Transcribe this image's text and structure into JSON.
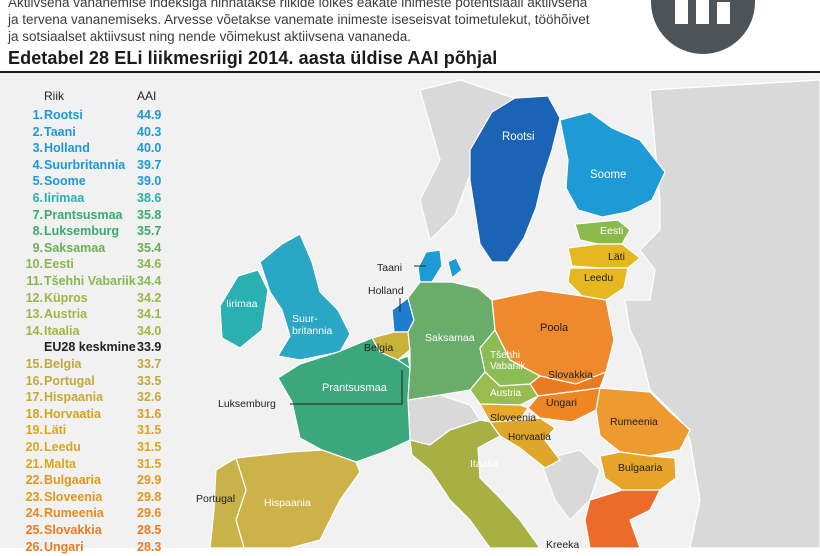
{
  "intro": {
    "line1": "Aktiivsena vananemise indeksiga hinnatakse riikide lõikes eakate inimeste potentsiaali aktiivsena",
    "line2": "ja tervena vananemiseks. Arvesse võetakse vanemate inimeste iseseisvat toimetulekut, tööhõivet",
    "line3": "ja sotsiaalset aktiivsust ning nende võimekust aktiivsena vananeda."
  },
  "title": "Edetabel 28 ELi liikmesriigi 2014. aasta üldise AAI põhjal",
  "legend": {
    "col_country": "Riik",
    "col_value": "AAI",
    "rows": [
      {
        "rank": "1.",
        "name": "Rootsi",
        "value": "44.9",
        "color": "#1a9bd7"
      },
      {
        "rank": "2.",
        "name": "Taani",
        "value": "40.3",
        "color": "#1a9bd7"
      },
      {
        "rank": "3.",
        "name": "Holland",
        "value": "40.0",
        "color": "#1a9bd7"
      },
      {
        "rank": "4.",
        "name": "Suurbritannia",
        "value": "39.7",
        "color": "#1a9bd7"
      },
      {
        "rank": "5.",
        "name": "Soome",
        "value": "39.0",
        "color": "#1a9bd7"
      },
      {
        "rank": "6.",
        "name": "Iirimaa",
        "value": "38.6",
        "color": "#2ab0b0"
      },
      {
        "rank": "7.",
        "name": "Prantsusmaa",
        "value": "35.8",
        "color": "#3aaa72"
      },
      {
        "rank": "8.",
        "name": "Luksemburg",
        "value": "35.7",
        "color": "#3aaa72"
      },
      {
        "rank": "9.",
        "name": "Saksamaa",
        "value": "35.4",
        "color": "#6ab055"
      },
      {
        "rank": "10.",
        "name": "Eesti",
        "value": "34.6",
        "color": "#86b84c"
      },
      {
        "rank": "11.",
        "name": "Tšehhi Vabariik",
        "value": "34.4",
        "color": "#86b84c"
      },
      {
        "rank": "12.",
        "name": "Küpros",
        "value": "34.2",
        "color": "#9ab845"
      },
      {
        "rank": "13.",
        "name": "Austria",
        "value": "34.1",
        "color": "#9ab845"
      },
      {
        "rank": "14.",
        "name": "Itaalia",
        "value": "34.0",
        "color": "#a6b43e"
      },
      {
        "rank": "",
        "name": "EU28 keskmine",
        "value": "33.9",
        "color": "#222222"
      },
      {
        "rank": "15.",
        "name": "Belgia",
        "value": "33.7",
        "color": "#c2a93a"
      },
      {
        "rank": "16.",
        "name": "Portugal",
        "value": "33.5",
        "color": "#c2a93a"
      },
      {
        "rank": "17.",
        "name": "Hispaania",
        "value": "32.6",
        "color": "#c8a836"
      },
      {
        "rank": "18.",
        "name": "Horvaatia",
        "value": "31.6",
        "color": "#d6a21e"
      },
      {
        "rank": "19.",
        "name": "Läti",
        "value": "31.5",
        "color": "#dea51a"
      },
      {
        "rank": "20.",
        "name": "Leedu",
        "value": "31.5",
        "color": "#dea51a"
      },
      {
        "rank": "21.",
        "name": "Malta",
        "value": "31.5",
        "color": "#dea51a"
      },
      {
        "rank": "22.",
        "name": "Bulgaaria",
        "value": "29.9",
        "color": "#e3961c"
      },
      {
        "rank": "23.",
        "name": "Sloveenia",
        "value": "29.8",
        "color": "#e3961c"
      },
      {
        "rank": "24.",
        "name": "Rumeenia",
        "value": "29.6",
        "color": "#e88a20"
      },
      {
        "rank": "25.",
        "name": "Slovakkia",
        "value": "28.5",
        "color": "#ec7a20"
      },
      {
        "rank": "26.",
        "name": "Ungari",
        "value": "28.3",
        "color": "#ec7a20"
      }
    ]
  },
  "map": {
    "land_color": "#d8d8d8",
    "sea_color": "#f0f0f0",
    "countries": {
      "rootsi": {
        "label": "Rootsi",
        "color": "#1a63b5",
        "label_color": "#ffffff"
      },
      "soome": {
        "label": "Soome",
        "color": "#1e9bd7",
        "label_color": "#ffffff"
      },
      "eesti": {
        "label": "Eesti",
        "color": "#8bba4c",
        "label_color": "#ffffff"
      },
      "lati": {
        "label": "Läti",
        "color": "#e6b820",
        "label_color": "#222222"
      },
      "leedu": {
        "label": "Leedu",
        "color": "#e6b820",
        "label_color": "#222222"
      },
      "taani": {
        "label": "Taani",
        "color": "#1e9bd7",
        "label_color": "#222222"
      },
      "holland": {
        "label": "Holland",
        "color": "#1e7ccc",
        "label_color": "#222222"
      },
      "iirimaa": {
        "label": "Iirimaa",
        "color": "#2ab0b0",
        "label_color": "#ffffff"
      },
      "suurbritannia": {
        "label_line1": "Suur-",
        "label_line2": "britannia",
        "color": "#29a7c4",
        "label_color": "#ffffff"
      },
      "belgia": {
        "label": "Belgia",
        "color": "#c8b23a",
        "label_color": "#222222"
      },
      "luksemburg": {
        "label": "Luksemburg",
        "color": "#3aaa72",
        "label_color": "#222222"
      },
      "prantsusmaa": {
        "label": "Prantsusmaa",
        "color": "#3aa77c",
        "label_color": "#ffffff"
      },
      "saksamaa": {
        "label": "Saksamaa",
        "color": "#6aad6a",
        "label_color": "#ffffff"
      },
      "poola": {
        "label": "Poola",
        "color": "#ef8a2c",
        "label_color": "#222222"
      },
      "tsehhi": {
        "label_line1": "Tšehhi",
        "label_line2": "Vabariik",
        "color": "#8cbc54",
        "label_color": "#ffffff"
      },
      "austria": {
        "label": "Austria",
        "color": "#98bc50",
        "label_color": "#ffffff"
      },
      "slovakkia": {
        "label": "Slovakkia",
        "color": "#ec7a20",
        "label_color": "#222222"
      },
      "ungari": {
        "label": "Ungari",
        "color": "#ee8624",
        "label_color": "#222222"
      },
      "sloveenia": {
        "label": "Sloveenia",
        "color": "#e8a82a",
        "label_color": "#222222"
      },
      "horvaatia": {
        "label": "Horvaatia",
        "color": "#dfa62a",
        "label_color": "#222222"
      },
      "rumeenia": {
        "label": "Rumeenia",
        "color": "#ee9a30",
        "label_color": "#222222"
      },
      "bulgaaria": {
        "label": "Bulgaaria",
        "color": "#e8a428",
        "label_color": "#222222"
      },
      "itaalia": {
        "label": "Itaalia",
        "color": "#a8b044",
        "label_color": "#ffffff"
      },
      "hispaania": {
        "label": "Hispaania",
        "color": "#ccb248",
        "label_color": "#ffffff"
      },
      "portugal": {
        "label": "Portugal",
        "color": "#c8b24a",
        "label_color": "#222222"
      },
      "kreeka": {
        "label": "Kreeka",
        "color": "#ec6a2a",
        "label_color": "#222222"
      }
    }
  }
}
